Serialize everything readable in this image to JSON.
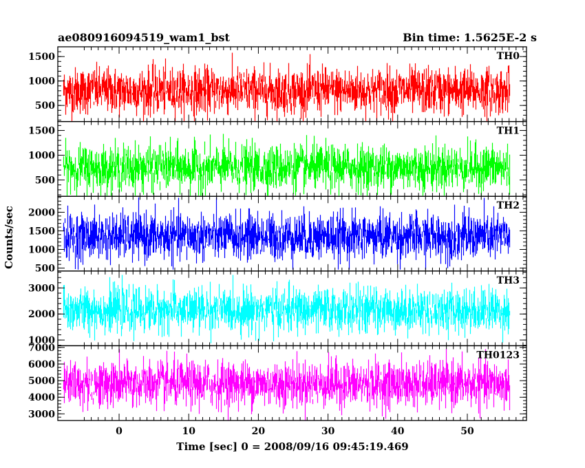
{
  "header": {
    "title": "ae080916094519_wam1_bst",
    "bin_time": "Bin time: 1.5625E-2 s"
  },
  "chart_data": {
    "type": "line",
    "title": "ae080916094519_wam1_bst",
    "subtitle": "Bin time: 1.5625E-2 s",
    "xlabel": "Time [sec] 0 = 2008/09/16 09:45:19.469",
    "ylabel": "Counts/sec",
    "xlim": [
      -8.8,
      58.5
    ],
    "x_ticks": [
      0,
      10,
      20,
      30,
      40,
      50
    ],
    "x_range_data": [
      -8.0,
      56.0
    ],
    "panels": [
      {
        "name": "TH0",
        "color": "#ff0000",
        "ylim": [
          170,
          1700
        ],
        "y_ticks": [
          500,
          1000,
          1500
        ],
        "median": 800,
        "approx_min": 250,
        "approx_max": 1650
      },
      {
        "name": "TH1",
        "color": "#00ff00",
        "ylim": [
          170,
          1680
        ],
        "y_ticks": [
          500,
          1000,
          1500
        ],
        "median": 750,
        "approx_min": 250,
        "approx_max": 1600
      },
      {
        "name": "TH2",
        "color": "#0000ff",
        "ylim": [
          420,
          2430
        ],
        "y_ticks": [
          500,
          1000,
          1500,
          2000
        ],
        "median": 1350,
        "approx_min": 550,
        "approx_max": 2400
      },
      {
        "name": "TH3",
        "color": "#00ffff",
        "ylim": [
          780,
          3650
        ],
        "y_ticks": [
          1000,
          2000,
          3000
        ],
        "median": 2150,
        "approx_min": 1000,
        "approx_max": 3500
      },
      {
        "name": "TH0123",
        "color": "#ff00ff",
        "ylim": [
          2600,
          7100
        ],
        "y_ticks": [
          3000,
          4000,
          5000,
          6000,
          7000
        ],
        "median": 4800,
        "approx_min": 2800,
        "approx_max": 6900
      }
    ]
  }
}
